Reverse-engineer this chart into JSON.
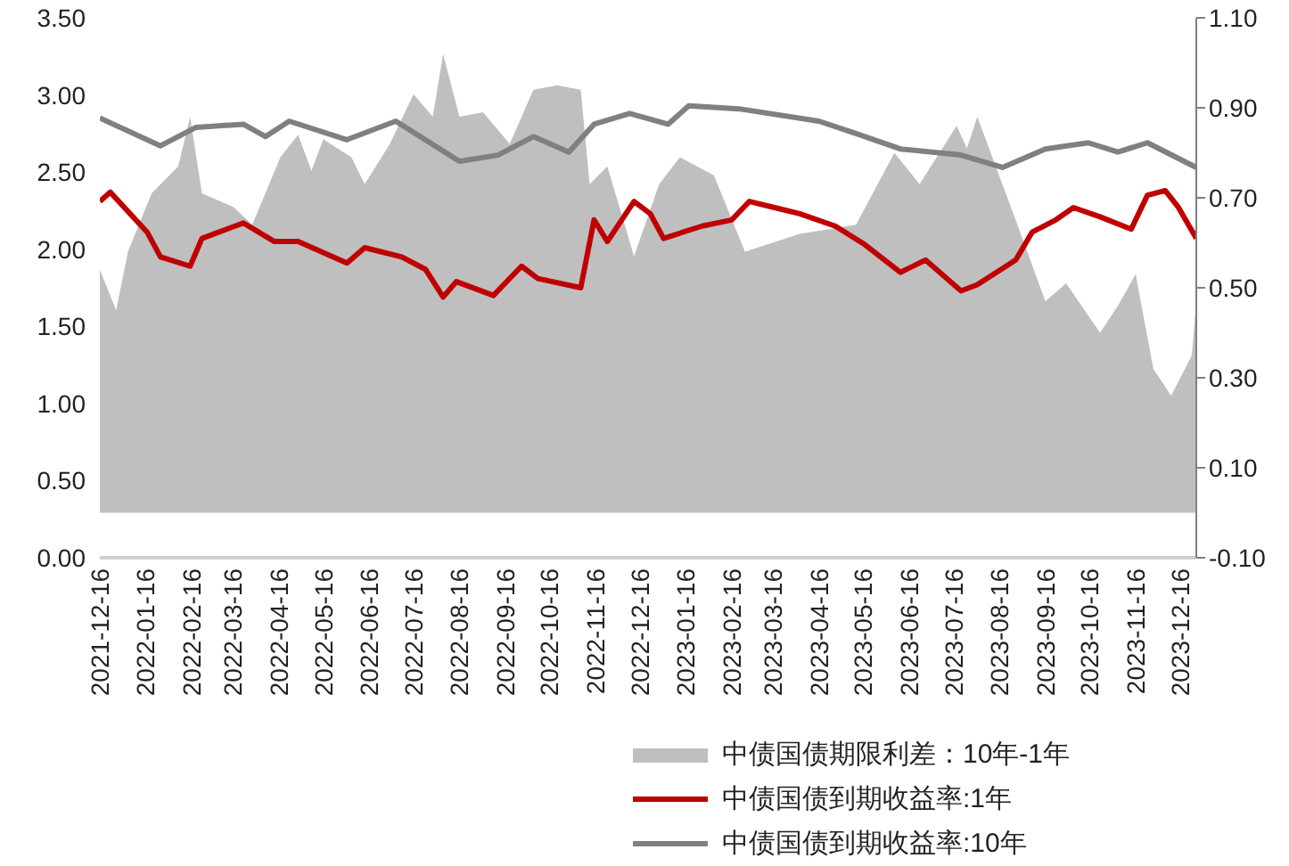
{
  "chart_data": {
    "type": "line",
    "xlim": [
      "2021-12-16",
      "2023-12-27"
    ],
    "xticks": [
      "2021-12-16",
      "2022-01-16",
      "2022-02-16",
      "2022-03-16",
      "2022-04-16",
      "2022-05-16",
      "2022-06-16",
      "2022-07-16",
      "2022-08-16",
      "2022-09-16",
      "2022-10-16",
      "2022-11-16",
      "2022-12-16",
      "2023-01-16",
      "2023-02-16",
      "2023-03-16",
      "2023-04-16",
      "2023-05-16",
      "2023-06-16",
      "2023-07-16",
      "2023-08-16",
      "2023-09-16",
      "2023-10-16",
      "2023-11-16",
      "2023-12-16"
    ],
    "ylim": [
      0,
      3.5
    ],
    "yticks": [
      {
        "value": 0,
        "label": "0.00"
      },
      {
        "value": 0.5,
        "label": "0.50"
      },
      {
        "value": 1,
        "label": "1.00"
      },
      {
        "value": 1.5,
        "label": "1.50"
      },
      {
        "value": 2,
        "label": "2.00"
      },
      {
        "value": 2.5,
        "label": "2.50"
      },
      {
        "value": 3,
        "label": "3.00"
      },
      {
        "value": 3.5,
        "label": "3.50"
      }
    ],
    "y2lim": [
      -0.1,
      1.1
    ],
    "y2ticks": [
      {
        "value": -0.1,
        "label": "-0.10"
      },
      {
        "value": 0.1,
        "label": "0.10"
      },
      {
        "value": 0.3,
        "label": "0.30"
      },
      {
        "value": 0.5,
        "label": "0.50"
      },
      {
        "value": 0.7,
        "label": "0.70"
      },
      {
        "value": 0.9,
        "label": "0.90"
      },
      {
        "value": 1.1,
        "label": "1.10"
      }
    ],
    "grid": false,
    "legend": "bottom",
    "series": [
      {
        "name": "中债国债期限利差：10年-1年",
        "type": "area",
        "axis": "y2",
        "color": "#bfbfbf",
        "x": [
          "2021-12-16",
          "2021-12-27",
          "2022-01-04",
          "2022-01-20",
          "2022-02-07",
          "2022-02-15",
          "2022-02-23",
          "2022-03-16",
          "2022-03-29",
          "2022-04-17",
          "2022-04-29",
          "2022-05-08",
          "2022-05-16",
          "2022-06-04",
          "2022-06-13",
          "2022-06-30",
          "2022-07-16",
          "2022-07-29",
          "2022-08-05",
          "2022-08-16",
          "2022-09-01",
          "2022-09-19",
          "2022-10-05",
          "2022-10-21",
          "2022-11-06",
          "2022-11-12",
          "2022-11-24",
          "2022-12-12",
          "2022-12-29",
          "2023-01-12",
          "2023-02-04",
          "2023-02-25",
          "2023-04-03",
          "2023-05-11",
          "2023-06-06",
          "2023-06-23",
          "2023-07-18",
          "2023-07-25",
          "2023-08-01",
          "2023-08-27",
          "2023-09-16",
          "2023-09-30",
          "2023-10-23",
          "2023-11-04",
          "2023-11-16",
          "2023-11-28",
          "2023-12-10",
          "2023-12-24",
          "2023-12-27"
        ],
        "values": [
          0.54,
          0.45,
          0.58,
          0.71,
          0.77,
          0.88,
          0.71,
          0.68,
          0.64,
          0.79,
          0.84,
          0.76,
          0.83,
          0.79,
          0.73,
          0.82,
          0.93,
          0.88,
          1.02,
          0.88,
          0.89,
          0.82,
          0.94,
          0.95,
          0.94,
          0.73,
          0.77,
          0.57,
          0.73,
          0.79,
          0.75,
          0.58,
          0.62,
          0.64,
          0.8,
          0.73,
          0.86,
          0.81,
          0.88,
          0.65,
          0.47,
          0.51,
          0.4,
          0.46,
          0.53,
          0.32,
          0.26,
          0.35,
          0.47
        ]
      },
      {
        "name": "中债国债到期收益率:1年",
        "color": "#c00000",
        "x": [
          "2021-12-16",
          "2021-12-23",
          "2022-01-17",
          "2022-01-26",
          "2022-02-15",
          "2022-02-23",
          "2022-03-23",
          "2022-04-13",
          "2022-04-29",
          "2022-06-01",
          "2022-06-13",
          "2022-07-08",
          "2022-07-24",
          "2022-08-05",
          "2022-08-14",
          "2022-09-08",
          "2022-09-27",
          "2022-10-08",
          "2022-11-06",
          "2022-11-15",
          "2022-11-24",
          "2022-12-12",
          "2022-12-23",
          "2023-01-01",
          "2023-01-27",
          "2023-02-16",
          "2023-02-28",
          "2023-03-17",
          "2023-04-03",
          "2023-04-27",
          "2023-05-17",
          "2023-06-10",
          "2023-06-27",
          "2023-07-21",
          "2023-08-01",
          "2023-08-27",
          "2023-09-07",
          "2023-09-23",
          "2023-10-05",
          "2023-10-23",
          "2023-11-13",
          "2023-11-24",
          "2023-12-06",
          "2023-12-15",
          "2023-12-27"
        ],
        "values": [
          2.31,
          2.37,
          2.11,
          1.95,
          1.89,
          2.07,
          2.17,
          2.05,
          2.05,
          1.91,
          2.01,
          1.95,
          1.87,
          1.69,
          1.79,
          1.7,
          1.89,
          1.81,
          1.75,
          2.19,
          2.05,
          2.31,
          2.23,
          2.07,
          2.15,
          2.19,
          2.31,
          2.27,
          2.23,
          2.15,
          2.03,
          1.85,
          1.93,
          1.73,
          1.77,
          1.93,
          2.11,
          2.19,
          2.27,
          2.21,
          2.13,
          2.35,
          2.38,
          2.27,
          2.07
        ]
      },
      {
        "name": "中债国债到期收益率:10年",
        "color": "#808080",
        "x": [
          "2021-12-16",
          "2022-01-26",
          "2022-02-19",
          "2022-03-23",
          "2022-04-07",
          "2022-04-23",
          "2022-06-01",
          "2022-07-04",
          "2022-08-16",
          "2022-09-11",
          "2022-10-05",
          "2022-10-29",
          "2022-11-15",
          "2022-12-09",
          "2023-01-04",
          "2023-01-18",
          "2023-02-21",
          "2023-04-16",
          "2023-05-11",
          "2023-06-10",
          "2023-07-21",
          "2023-08-18",
          "2023-09-16",
          "2023-10-15",
          "2023-11-04",
          "2023-11-24",
          "2023-12-27"
        ],
        "values": [
          2.85,
          2.67,
          2.79,
          2.81,
          2.73,
          2.83,
          2.71,
          2.83,
          2.57,
          2.61,
          2.73,
          2.63,
          2.81,
          2.88,
          2.81,
          2.93,
          2.91,
          2.83,
          2.75,
          2.65,
          2.61,
          2.53,
          2.65,
          2.69,
          2.63,
          2.69,
          2.53
        ]
      }
    ]
  }
}
